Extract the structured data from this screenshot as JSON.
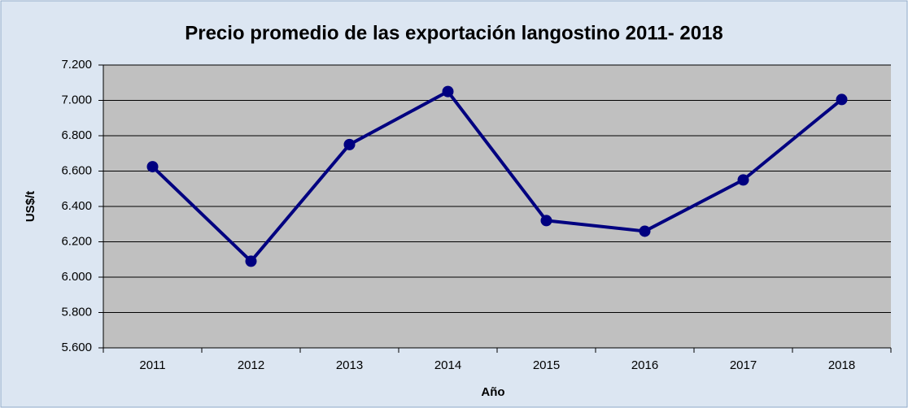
{
  "chart_data": {
    "type": "line",
    "title": "Precio promedio de las exportación langostino 2011- 2018",
    "xlabel": "Año",
    "ylabel": "US$/t",
    "categories": [
      "2011",
      "2012",
      "2013",
      "2014",
      "2015",
      "2016",
      "2017",
      "2018"
    ],
    "series": [
      {
        "name": "Precio promedio",
        "color": "#000080",
        "values": [
          6625,
          6090,
          6750,
          7050,
          6320,
          6260,
          6550,
          7005
        ]
      }
    ],
    "ylim": [
      5600,
      7200
    ],
    "yticks": [
      {
        "value": 5600,
        "label": "5.600"
      },
      {
        "value": 5800,
        "label": "5.800"
      },
      {
        "value": 6000,
        "label": "6.000"
      },
      {
        "value": 6200,
        "label": "6.200"
      },
      {
        "value": 6400,
        "label": "6.400"
      },
      {
        "value": 6600,
        "label": "6.600"
      },
      {
        "value": 6800,
        "label": "6.800"
      },
      {
        "value": 7000,
        "label": "7.000"
      },
      {
        "value": 7200,
        "label": "7.200"
      }
    ],
    "grid": true
  }
}
